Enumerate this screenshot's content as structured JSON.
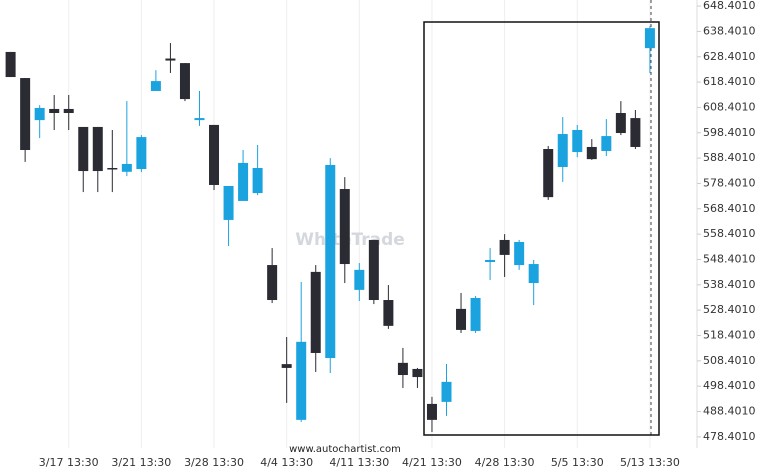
{
  "chart_data": {
    "type": "candlestick",
    "watermark": "WhiteTrade",
    "source": "www.autochartist.com",
    "categories": [
      null,
      null,
      null,
      null,
      "3/17 13:30",
      null,
      null,
      null,
      null,
      "3/21 13:30",
      null,
      null,
      null,
      null,
      "3/28 13:30",
      null,
      null,
      null,
      null,
      "4/4 13:30",
      null,
      null,
      null,
      null,
      "4/11 13:30",
      null,
      null,
      null,
      null,
      "4/21 13:30",
      null,
      null,
      null,
      null,
      "4/28 13:30",
      null,
      null,
      null,
      null,
      "5/5 13:30",
      null,
      null,
      null,
      null,
      "5/13 13:30"
    ],
    "open": [
      630.3,
      620.0,
      603.4,
      607.8,
      607.8,
      600.7,
      600.7,
      584.5,
      583.0,
      584.1,
      614.9,
      627.7,
      625.9,
      603.4,
      601.5,
      564.0,
      571.5,
      574.6,
      546.2,
      507.1,
      485.1,
      543.5,
      509.5,
      576.2,
      536.4,
      556.1,
      532.4,
      507.6,
      505.2,
      491.4,
      492.2,
      528.9,
      520.2,
      547.4,
      556.1,
      546.2,
      539.1,
      592.0,
      584.9,
      590.8,
      592.8,
      591.2,
      606.2,
      604.2,
      631.8
    ],
    "high": [
      630.3,
      620.0,
      609.3,
      613.3,
      613.3,
      600.7,
      600.7,
      599.5,
      610.9,
      597.5,
      623.1,
      633.8,
      625.9,
      614.9,
      601.5,
      577.4,
      591.6,
      593.6,
      552.9,
      517.8,
      539.5,
      546.2,
      588.4,
      580.9,
      547.0,
      556.1,
      538.3,
      513.5,
      505.6,
      494.2,
      507.2,
      535.2,
      534.0,
      552.9,
      558.4,
      556.1,
      548.2,
      593.2,
      604.6,
      601.5,
      595.9,
      603.8,
      610.9,
      607.4,
      640.5
    ],
    "low": [
      620.4,
      586.9,
      596.3,
      599.5,
      599.5,
      575.0,
      575.0,
      575.0,
      581.3,
      582.9,
      614.9,
      622.0,
      610.9,
      601.1,
      575.8,
      553.7,
      571.5,
      573.8,
      531.2,
      491.8,
      484.3,
      504.0,
      503.6,
      539.1,
      532.0,
      530.8,
      521.0,
      497.7,
      497.7,
      480.3,
      486.7,
      519.4,
      519.4,
      540.3,
      541.5,
      544.3,
      530.4,
      571.9,
      579.0,
      588.8,
      587.7,
      589.2,
      597.5,
      592.0,
      622.0
    ],
    "close": [
      620.4,
      591.6,
      608.2,
      606.2,
      606.2,
      583.3,
      583.3,
      584.3,
      586.1,
      596.7,
      618.8,
      626.9,
      611.7,
      604.2,
      577.8,
      577.4,
      586.5,
      584.5,
      532.4,
      505.6,
      515.9,
      511.5,
      585.7,
      546.6,
      544.3,
      532.4,
      522.2,
      502.8,
      502.0,
      485.1,
      500.1,
      520.6,
      533.2,
      548.2,
      550.2,
      555.3,
      546.6,
      573.0,
      597.9,
      599.5,
      588.0,
      597.1,
      598.3,
      592.8,
      639.7
    ],
    "up_color": "#1ba3e0",
    "down_color": "#2b2b33",
    "ylim": [
      474.0,
      650.8
    ],
    "yticks": [
      {
        "value": 478.401,
        "label": "478.4010"
      },
      {
        "value": 488.401,
        "label": "488.4010"
      },
      {
        "value": 498.401,
        "label": "498.4010"
      },
      {
        "value": 508.401,
        "label": "508.4010"
      },
      {
        "value": 518.401,
        "label": "518.4010"
      },
      {
        "value": 528.401,
        "label": "528.4010"
      },
      {
        "value": 538.401,
        "label": "538.4010"
      },
      {
        "value": 548.401,
        "label": "548.4010"
      },
      {
        "value": 558.401,
        "label": "558.4010"
      },
      {
        "value": 568.401,
        "label": "568.4010"
      },
      {
        "value": 578.401,
        "label": "578.4010"
      },
      {
        "value": 588.401,
        "label": "588.4010"
      },
      {
        "value": 598.401,
        "label": "598.4010"
      },
      {
        "value": 608.401,
        "label": "608.4010"
      },
      {
        "value": 618.401,
        "label": "618.4010"
      },
      {
        "value": 628.401,
        "label": "628.4010"
      },
      {
        "value": 638.401,
        "label": "638.4010"
      },
      {
        "value": 648.401,
        "label": "648.4010"
      }
    ],
    "grid": true
  }
}
